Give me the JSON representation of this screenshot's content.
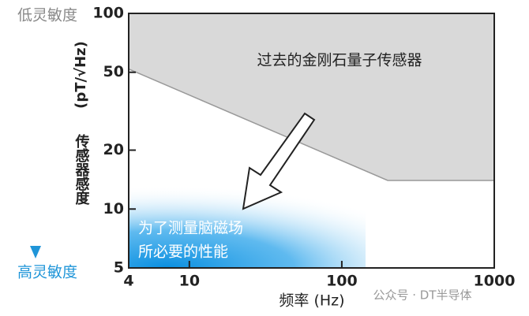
{
  "chart_data": {
    "type": "area",
    "x_label": "频率 (Hz)",
    "y_label_unit": "(pT/√Hz)",
    "y_label": "传感器感度",
    "low_label": "低灵敏度",
    "high_label": "高灵敏度",
    "annotations": [
      "过去的金刚石量子传感器",
      "为了测量脑磁场",
      "所必要的性能"
    ],
    "watermark": "公众号 · DT半导体",
    "x": [
      4,
      200,
      1000
    ],
    "series": [
      {
        "color": "#d9d9d9",
        "values": [
          52,
          14,
          14
        ]
      }
    ],
    "xlim": [
      4,
      1000
    ],
    "xticks": [
      4,
      10,
      100,
      1000
    ],
    "ylim": [
      5,
      100
    ],
    "yticks": [
      5,
      10,
      20,
      50,
      100
    ],
    "log_x": true,
    "log_y": true
  }
}
